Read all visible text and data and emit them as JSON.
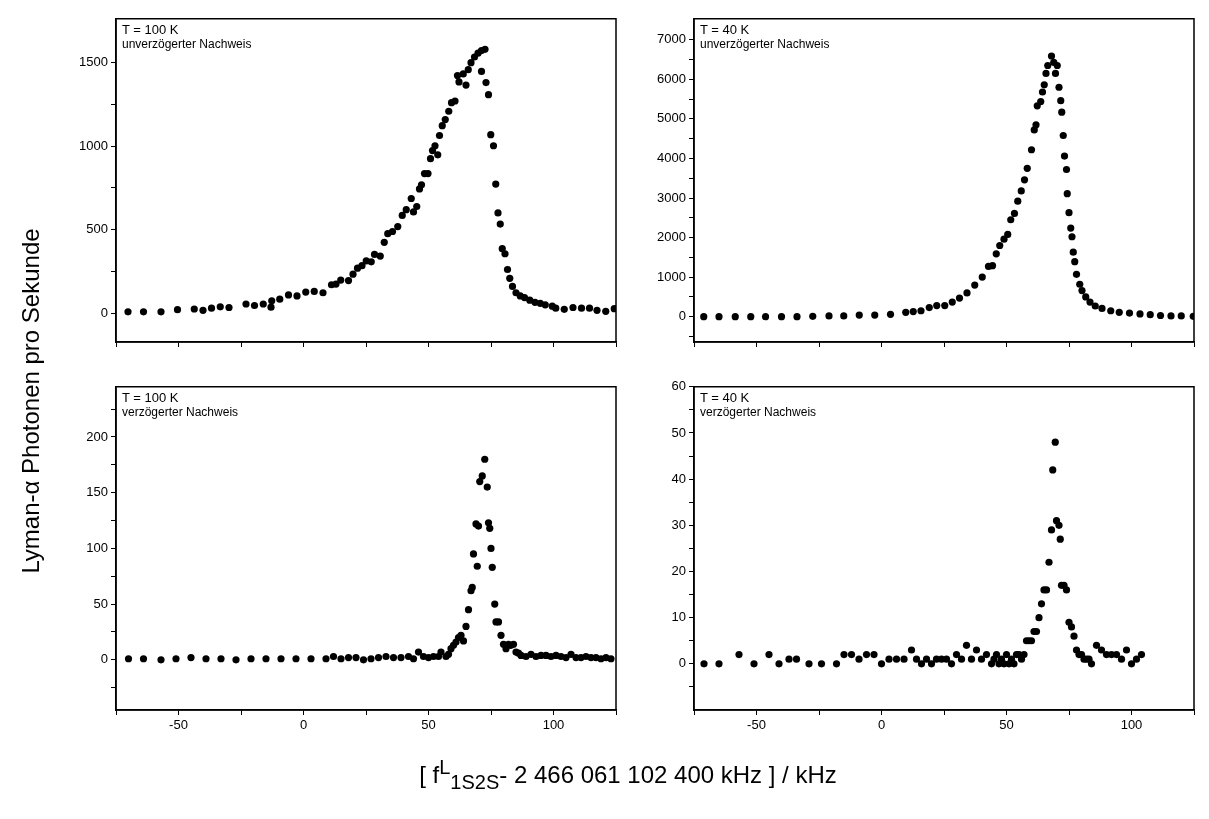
{
  "chart_data": [
    {
      "type": "scatter",
      "ylabel": "Lyman-α Photonen pro Sekunde",
      "annotations": [
        "T = 100 K",
        "unverzögerter Nachweis"
      ],
      "marker": "circle",
      "grid": false,
      "legend": false,
      "tick_labels": "y",
      "xlim": [
        -75,
        125
      ],
      "xticks": [
        {
          "value": -75,
          "label": null
        },
        -50,
        {
          "value": -25,
          "label": null
        },
        0,
        {
          "value": 25,
          "label": null
        },
        50,
        {
          "value": 75,
          "label": null
        },
        100,
        {
          "value": 125,
          "label": null
        }
      ],
      "ylim": [
        -170,
        1760
      ],
      "yticks": [
        0,
        {
          "value": 250,
          "label": null
        },
        500,
        {
          "value": 750,
          "label": null
        },
        1000,
        {
          "value": 1250,
          "label": null
        },
        1500
      ],
      "series": [
        {
          "color": "#000000",
          "x": [
            -70.2,
            -64,
            -57,
            -50.4,
            -43.7,
            -40.2,
            -36.8,
            -33.3,
            -29.8,
            -23,
            -19.6,
            -16.1,
            -13,
            -12.7,
            -9.5,
            -6,
            -2.6,
            0.9,
            4.3,
            7.8,
            11.2,
            13,
            14.9,
            18,
            19.8,
            21.6,
            23.4,
            25.1,
            27.1,
            28.4,
            30.7,
            32.3,
            33.7,
            35.6,
            37.7,
            39.5,
            41.1,
            43.1,
            44,
            45.3,
            46.4,
            47.2,
            48.4,
            49.8,
            50.8,
            51.6,
            52.6,
            53.7,
            54.4,
            55.5,
            56.7,
            58.1,
            59.2,
            60.6,
            61.6,
            62.2,
            63.9,
            65,
            65.9,
            67,
            68.4,
            69.8,
            71.2,
            72.6,
            71.2,
            73,
            74,
            74.9,
            76,
            76.9,
            77.8,
            78.7,
            79.5,
            80.6,
            81.6,
            82.5,
            83.6,
            85,
            86.7,
            88.4,
            90.5,
            92.6,
            94.7,
            96.7,
            99.5,
            100.9,
            104.3,
            107.8,
            111.2,
            114.4,
            117.4,
            120.9,
            124.3
          ],
          "values": [
            10,
            10,
            10,
            23,
            27,
            19,
            32,
            40,
            36,
            57,
            48,
            57,
            38,
            76,
            86,
            111,
            105,
            128,
            132,
            124,
            172,
            176,
            200,
            197,
            235,
            271,
            286,
            315,
            309,
            353,
            343,
            425,
            477,
            490,
            519,
            586,
            620,
            687,
            607,
            639,
            744,
            769,
            836,
            836,
            925,
            973,
            1002,
            948,
            1063,
            1122,
            1158,
            1208,
            1259,
            1269,
            1421,
            1383,
            1431,
            1364,
            1456,
            1498,
            1532,
            1555,
            1570,
            1578,
            1446,
            1379,
            1307,
            1068,
            1002,
            773,
            601,
            534,
            387,
            357,
            263,
            210,
            162,
            124,
            105,
            95,
            80,
            67,
            61,
            52,
            44,
            32,
            25,
            36,
            32,
            32,
            19,
            13,
            29
          ]
        }
      ]
    },
    {
      "type": "scatter",
      "annotations": [
        "T = 40 K",
        "unverzögerter Nachweis"
      ],
      "marker": "circle",
      "grid": false,
      "legend": false,
      "tick_labels": "y",
      "xlim": [
        -75,
        125
      ],
      "xticks": [
        {
          "value": -75,
          "label": null
        },
        -50,
        {
          "value": -25,
          "label": null
        },
        0,
        {
          "value": 25,
          "label": null
        },
        50,
        {
          "value": 75,
          "label": null
        },
        100,
        {
          "value": 125,
          "label": null
        }
      ],
      "ylim": [
        -640,
        7530
      ],
      "yticks": [
        {
          "value": -500,
          "label": null
        },
        0,
        {
          "value": 500,
          "label": null
        },
        1000,
        {
          "value": 1500,
          "label": null
        },
        2000,
        {
          "value": 2500,
          "label": null
        },
        3000,
        {
          "value": 3500,
          "label": null
        },
        4000,
        {
          "value": 4500,
          "label": null
        },
        5000,
        {
          "value": 5500,
          "label": null
        },
        6000,
        {
          "value": 6500,
          "label": null
        },
        7000
      ],
      "series": [
        {
          "color": "#000000",
          "x": [
            -71.1,
            -65,
            -58.5,
            -52.3,
            -46.4,
            -40,
            -33.8,
            -27.5,
            -21,
            -15.1,
            -8.9,
            -2.7,
            3.6,
            9.7,
            12.7,
            15.8,
            19.1,
            22.1,
            25.3,
            28.3,
            31.2,
            34.2,
            37.3,
            40.3,
            42.8,
            44.4,
            45.9,
            47.3,
            49,
            50.5,
            51.7,
            53.2,
            54.5,
            55.9,
            57.2,
            58.3,
            60,
            61.1,
            61.8,
            62.3,
            63.7,
            64.4,
            65.1,
            65.8,
            66.5,
            68,
            68.9,
            70.3,
            69.6,
            71,
            71.7,
            72.1,
            72.7,
            73.2,
            74,
            74.3,
            75,
            75.7,
            76.2,
            76.7,
            77.3,
            78,
            79.3,
            80.2,
            81.7,
            83.4,
            85.5,
            88.2,
            91.7,
            95.1,
            99.2,
            103.4,
            107.5,
            111.6,
            115.8,
            119.9,
            124.7
          ],
          "values": [
            0,
            0,
            0,
            0,
            0,
            0,
            0,
            10,
            20,
            20,
            40,
            40,
            60,
            110,
            130,
            150,
            230,
            280,
            280,
            370,
            470,
            600,
            800,
            1000,
            1270,
            1290,
            1590,
            1800,
            1960,
            2080,
            2450,
            2610,
            2920,
            3180,
            3460,
            3750,
            4220,
            4720,
            4850,
            5330,
            5440,
            5680,
            5860,
            6150,
            6350,
            6590,
            6430,
            6350,
            6150,
            5800,
            5460,
            5170,
            4580,
            4060,
            3720,
            3110,
            2630,
            2240,
            2020,
            1630,
            1390,
            1070,
            820,
            660,
            500,
            370,
            270,
            210,
            150,
            110,
            90,
            70,
            50,
            30,
            20,
            20,
            10
          ]
        }
      ]
    },
    {
      "type": "scatter",
      "xlabel": "[ f$^{L}$$_{1S2S}$- 2 466 061 102 400 kHz ] / kHz",
      "annotations": [
        "T = 100 K",
        "verzögerter Nachweis"
      ],
      "marker": "circle",
      "grid": false,
      "legend": false,
      "xlim": [
        -75,
        125
      ],
      "xticks": [
        {
          "value": -75,
          "label": null
        },
        -50,
        {
          "value": -25,
          "label": null
        },
        0,
        {
          "value": 25,
          "label": null
        },
        50,
        {
          "value": 75,
          "label": null
        },
        100,
        {
          "value": 125,
          "label": null
        }
      ],
      "ylim": [
        -45,
        245
      ],
      "yticks": [
        {
          "value": -25,
          "label": null
        },
        0,
        {
          "value": 25,
          "label": null
        },
        50,
        {
          "value": 75,
          "label": null
        },
        100,
        {
          "value": 125,
          "label": null
        },
        150,
        {
          "value": 175,
          "label": null
        },
        200,
        {
          "value": 225,
          "label": null
        }
      ],
      "series": [
        {
          "color": "#000000",
          "x": [
            -70,
            -64,
            -57,
            -51,
            -45,
            -39,
            -33,
            -27,
            -21,
            -15,
            -9,
            -3,
            3,
            9,
            12,
            15,
            18,
            21,
            24,
            27,
            30,
            33,
            36,
            39,
            42,
            44,
            46,
            48,
            50,
            52,
            54,
            55,
            57,
            58,
            59,
            60,
            61,
            62,
            63,
            64,
            65,
            66,
            67,
            67.5,
            68,
            69,
            69.5,
            70,
            70.5,
            71.5,
            72.5,
            73.5,
            74,
            74.5,
            75,
            75.5,
            76.5,
            77,
            78,
            79,
            80,
            81,
            82,
            83,
            84,
            85,
            86,
            87,
            89,
            91,
            93,
            95,
            97,
            99,
            101,
            103,
            105,
            107,
            109,
            111,
            113,
            115,
            117,
            119,
            121,
            123
          ],
          "values": [
            1,
            1,
            0,
            1,
            2,
            1,
            1,
            0,
            1,
            1,
            1,
            1,
            1,
            1,
            3,
            1,
            2,
            2,
            0,
            1,
            2,
            3,
            2,
            2,
            3,
            1,
            7,
            3,
            2,
            3,
            3,
            7,
            3,
            5,
            10,
            13,
            16,
            20,
            22,
            17,
            30,
            45,
            62,
            65,
            95,
            122,
            84,
            120,
            160,
            165,
            180,
            155,
            123,
            118,
            100,
            83,
            50,
            34,
            34,
            22,
            14,
            10,
            14,
            13,
            14,
            7,
            6,
            4,
            3,
            5,
            3,
            4,
            4,
            3,
            4,
            3,
            2,
            5,
            2,
            2,
            3,
            2,
            2,
            1,
            2,
            1
          ]
        }
      ]
    },
    {
      "type": "scatter",
      "annotations": [
        "T = 40 K",
        "verzögerter Nachweis"
      ],
      "marker": "circle",
      "grid": false,
      "legend": false,
      "xlim": [
        -75,
        125
      ],
      "xticks": [
        {
          "value": -75,
          "label": null
        },
        -50,
        {
          "value": -25,
          "label": null
        },
        0,
        {
          "value": 25,
          "label": null
        },
        50,
        {
          "value": 75,
          "label": null
        },
        100,
        {
          "value": 125,
          "label": null
        }
      ],
      "ylim": [
        -10,
        60
      ],
      "yticks": [
        {
          "value": -5,
          "label": null
        },
        0,
        {
          "value": 5,
          "label": null
        },
        10,
        {
          "value": 15,
          "label": null
        },
        20,
        {
          "value": 25,
          "label": null
        },
        30,
        {
          "value": 35,
          "label": null
        },
        40,
        {
          "value": 45,
          "label": null
        },
        50,
        {
          "value": 55,
          "label": null
        },
        60
      ],
      "series": [
        {
          "color": "#000000",
          "x": [
            -71,
            -65,
            -57,
            -51,
            -45,
            -41,
            -37,
            -34,
            -29,
            -24,
            -18,
            -15,
            -12,
            -9,
            -6,
            -3,
            0,
            3,
            6,
            9,
            12,
            14,
            16,
            18,
            20,
            22,
            24,
            26,
            28,
            30,
            32,
            34,
            36,
            38,
            40,
            42,
            44,
            45,
            46,
            47,
            48,
            49,
            50,
            51,
            52,
            53,
            54,
            55,
            56,
            57,
            58,
            59,
            60,
            61,
            62,
            63,
            64,
            65,
            66,
            67,
            68,
            68.5,
            69.5,
            70,
            71,
            71.5,
            72,
            73,
            74,
            75,
            76,
            77,
            78,
            79,
            80,
            81,
            82,
            83,
            84,
            86,
            88,
            90,
            92,
            94,
            96,
            98,
            100,
            102,
            104
          ],
          "values": [
            0,
            0,
            2,
            0,
            2,
            0,
            1,
            1,
            0,
            0,
            0,
            2,
            2,
            1,
            2,
            2,
            0,
            1,
            1,
            1,
            3,
            1,
            0,
            1,
            0,
            1,
            1,
            1,
            0,
            2,
            1,
            4,
            1,
            3,
            1,
            2,
            0,
            1,
            2,
            0,
            1,
            0,
            2,
            0,
            1,
            0,
            2,
            2,
            1,
            2,
            5,
            5,
            5,
            7,
            7,
            10,
            13,
            16,
            16,
            22,
            29,
            42,
            48,
            31,
            30,
            27,
            17,
            17,
            16,
            9,
            8,
            6,
            3,
            2,
            2,
            1,
            1,
            1,
            0,
            4,
            3,
            2,
            2,
            2,
            1,
            3,
            0,
            1,
            2
          ]
        }
      ]
    }
  ]
}
